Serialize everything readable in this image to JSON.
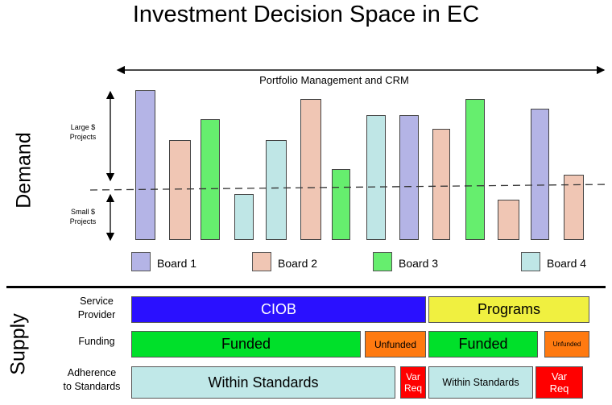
{
  "title": "Investment Decision Space in EC",
  "colors": {
    "board1": "#b4b4e6",
    "board2": "#f0c6b4",
    "board3": "#66ee6e",
    "board4": "#bfe6e6",
    "ciob": "#2a10ff",
    "programs": "#f0f040",
    "funded": "#00e02a",
    "unfunded": "#ff7a10",
    "var_req": "#ff0000",
    "within": "#c0e8e8"
  },
  "demand": {
    "label": "Demand",
    "portfolio_label": "Portfolio Management and CRM",
    "large_label": [
      "Large $",
      "Projects"
    ],
    "small_label": [
      "Small $",
      "Projects"
    ],
    "bar_boards": [
      "board1",
      "board2",
      "board3",
      "board4",
      "board4",
      "board2",
      "board3",
      "board4",
      "board1",
      "board2",
      "board3",
      "board2",
      "board1",
      "board2"
    ],
    "legend": [
      {
        "key": "board1",
        "label": "Board 1"
      },
      {
        "key": "board2",
        "label": "Board 2"
      },
      {
        "key": "board3",
        "label": "Board 3"
      },
      {
        "key": "board4",
        "label": "Board 4"
      }
    ]
  },
  "supply": {
    "label": "Supply",
    "rows": {
      "service_provider": {
        "label": [
          "Service",
          "Provider"
        ],
        "ciob": "CIOB",
        "programs": "Programs"
      },
      "funding": {
        "label": "Funding",
        "funded_a": "Funded",
        "unfunded_a": "Unfunded",
        "funded_b": "Funded",
        "unfunded_b": "Unfunded"
      },
      "adherence": {
        "label": [
          "Adherence",
          "to Standards"
        ],
        "within_a": "Within Standards",
        "var_a": [
          "Var",
          "Req"
        ],
        "within_b": "Within Standards",
        "var_b": [
          "Var",
          "Req"
        ]
      }
    }
  }
}
